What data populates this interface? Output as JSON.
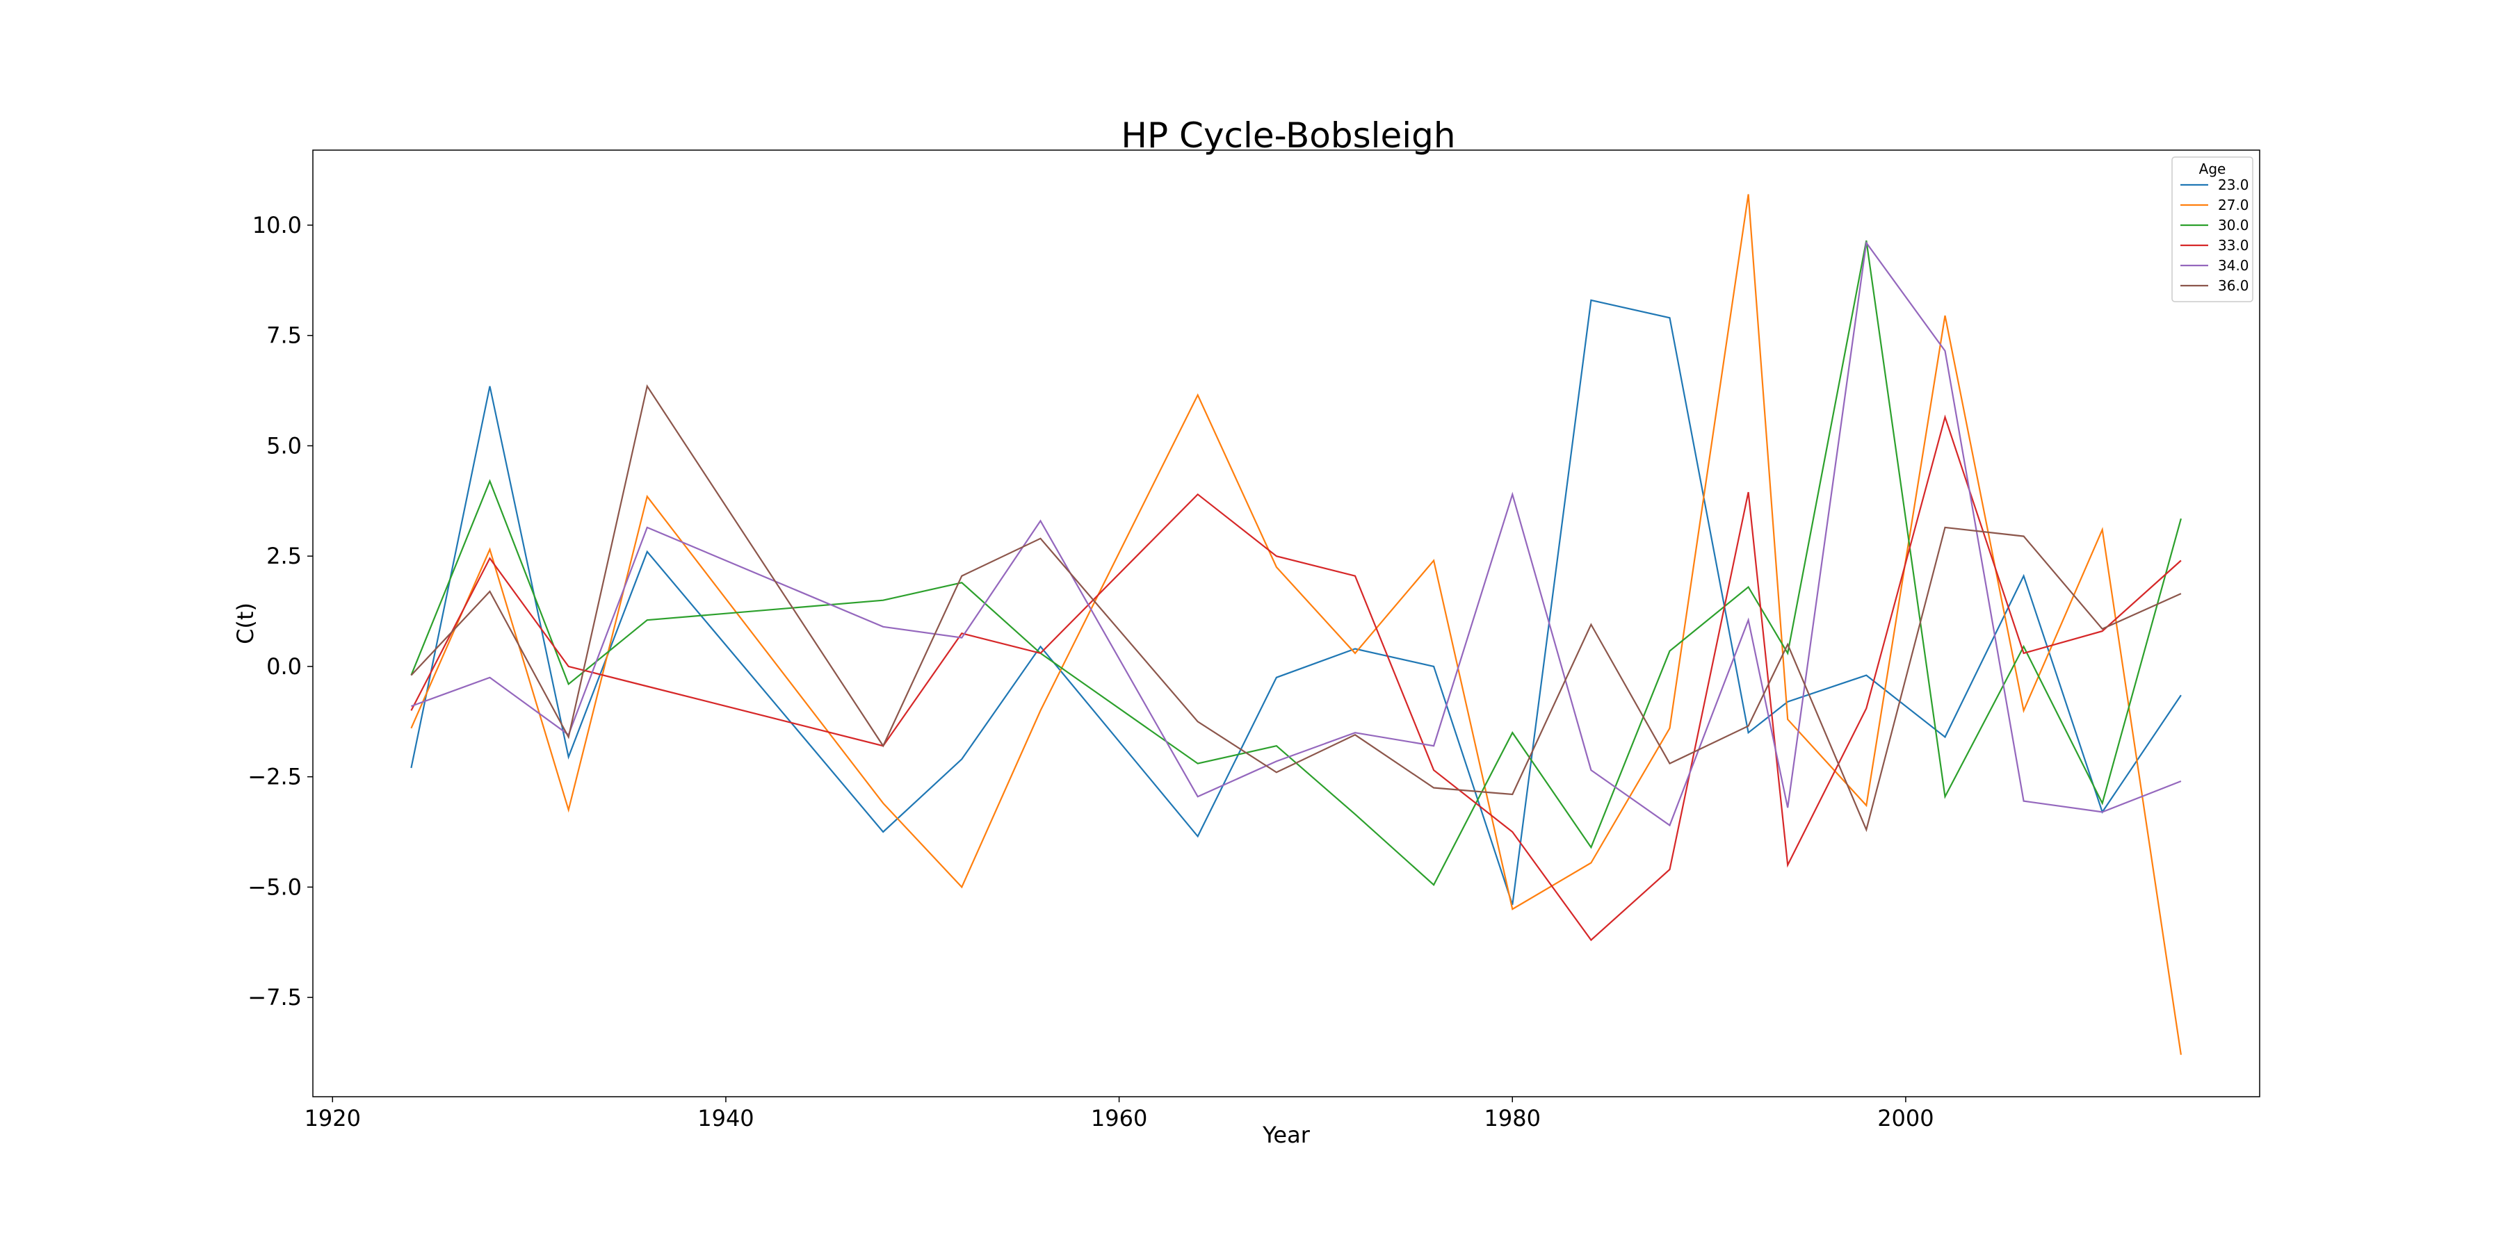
{
  "chart_data": {
    "type": "line",
    "title": "HP Cycle-Bobsleigh",
    "xlabel": "Year",
    "ylabel": "C(t)",
    "xlim": [
      1919,
      2018
    ],
    "ylim": [
      -9.75,
      11.7
    ],
    "xticks": [
      1920,
      1940,
      1960,
      1980,
      2000
    ],
    "yticks": [
      -7.5,
      -5.0,
      -2.5,
      0.0,
      2.5,
      5.0,
      7.5,
      10.0
    ],
    "grid": false,
    "legend": {
      "title": "Age",
      "placement": "top-right"
    },
    "series": [
      {
        "name": "23.0",
        "color": "#1f77b4",
        "points": [
          [
            1924,
            -2.3
          ],
          [
            1928,
            6.35
          ],
          [
            1932,
            -2.05
          ],
          [
            1936,
            2.6
          ],
          [
            1948,
            -3.75
          ],
          [
            1952,
            -2.1
          ],
          [
            1956,
            0.45
          ],
          [
            1964,
            -3.85
          ],
          [
            1968,
            -0.25
          ],
          [
            1972,
            0.4
          ],
          [
            1976,
            0.0
          ],
          [
            1980,
            -5.4
          ],
          [
            1984,
            8.3
          ],
          [
            1988,
            7.9
          ],
          [
            1992,
            -1.5
          ],
          [
            1994,
            -0.8
          ],
          [
            1998,
            -0.2
          ],
          [
            2002,
            -1.6
          ],
          [
            2006,
            2.05
          ],
          [
            2010,
            -3.3
          ],
          [
            2014,
            -0.65
          ]
        ]
      },
      {
        "name": "27.0",
        "color": "#ff7f0e",
        "points": [
          [
            1924,
            -1.4
          ],
          [
            1928,
            2.65
          ],
          [
            1932,
            -3.25
          ],
          [
            1936,
            3.85
          ],
          [
            1948,
            -3.1
          ],
          [
            1952,
            -5.0
          ],
          [
            1956,
            -1.0
          ],
          [
            1964,
            6.15
          ],
          [
            1968,
            2.25
          ],
          [
            1972,
            0.3
          ],
          [
            1976,
            2.4
          ],
          [
            1980,
            -5.5
          ],
          [
            1984,
            -4.45
          ],
          [
            1988,
            -1.4
          ],
          [
            1992,
            10.7
          ],
          [
            1994,
            -1.2
          ],
          [
            1998,
            -3.15
          ],
          [
            2002,
            7.95
          ],
          [
            2006,
            -1.0
          ],
          [
            2010,
            3.1
          ],
          [
            2014,
            -8.8
          ]
        ]
      },
      {
        "name": "30.0",
        "color": "#2ca02c",
        "points": [
          [
            1924,
            -0.2
          ],
          [
            1928,
            4.2
          ],
          [
            1932,
            -0.4
          ],
          [
            1936,
            1.05
          ],
          [
            1948,
            1.5
          ],
          [
            1952,
            1.9
          ],
          [
            1956,
            0.3
          ],
          [
            1964,
            -2.2
          ],
          [
            1968,
            -1.8
          ],
          [
            1972,
            -3.35
          ],
          [
            1976,
            -4.95
          ],
          [
            1980,
            -1.5
          ],
          [
            1984,
            -4.1
          ],
          [
            1988,
            0.35
          ],
          [
            1992,
            1.8
          ],
          [
            1994,
            0.3
          ],
          [
            1998,
            9.65
          ],
          [
            2002,
            -2.95
          ],
          [
            2006,
            0.45
          ],
          [
            2010,
            -3.1
          ],
          [
            2014,
            3.35
          ]
        ]
      },
      {
        "name": "33.0",
        "color": "#d62728",
        "points": [
          [
            1924,
            -1.0
          ],
          [
            1928,
            2.45
          ],
          [
            1932,
            0.0
          ],
          [
            1936,
            -0.45
          ],
          [
            1948,
            -1.8
          ],
          [
            1952,
            0.75
          ],
          [
            1956,
            0.3
          ],
          [
            1964,
            3.9
          ],
          [
            1968,
            2.5
          ],
          [
            1972,
            2.05
          ],
          [
            1976,
            -2.35
          ],
          [
            1980,
            -3.75
          ],
          [
            1984,
            -6.2
          ],
          [
            1988,
            -4.6
          ],
          [
            1992,
            3.95
          ],
          [
            1994,
            -4.5
          ],
          [
            1998,
            -0.95
          ],
          [
            2002,
            5.65
          ],
          [
            2006,
            0.3
          ],
          [
            2010,
            0.8
          ],
          [
            2014,
            2.4
          ]
        ]
      },
      {
        "name": "34.0",
        "color": "#9467bd",
        "points": [
          [
            1924,
            -0.9
          ],
          [
            1928,
            -0.25
          ],
          [
            1932,
            -1.55
          ],
          [
            1936,
            3.15
          ],
          [
            1948,
            0.9
          ],
          [
            1952,
            0.65
          ],
          [
            1956,
            3.3
          ],
          [
            1964,
            -2.95
          ],
          [
            1968,
            -2.15
          ],
          [
            1972,
            -1.5
          ],
          [
            1976,
            -1.8
          ],
          [
            1980,
            3.9
          ],
          [
            1984,
            -2.35
          ],
          [
            1988,
            -3.6
          ],
          [
            1992,
            1.05
          ],
          [
            1994,
            -3.2
          ],
          [
            1998,
            9.6
          ],
          [
            2002,
            7.15
          ],
          [
            2006,
            -3.05
          ],
          [
            2010,
            -3.3
          ],
          [
            2014,
            -2.6
          ]
        ]
      },
      {
        "name": "36.0",
        "color": "#8c564b",
        "points": [
          [
            1924,
            -0.2
          ],
          [
            1928,
            1.7
          ],
          [
            1932,
            -1.6
          ],
          [
            1936,
            6.35
          ],
          [
            1948,
            -1.8
          ],
          [
            1952,
            2.05
          ],
          [
            1956,
            2.9
          ],
          [
            1964,
            -1.25
          ],
          [
            1968,
            -2.4
          ],
          [
            1972,
            -1.55
          ],
          [
            1976,
            -2.75
          ],
          [
            1980,
            -2.9
          ],
          [
            1984,
            0.95
          ],
          [
            1988,
            -2.2
          ],
          [
            1992,
            -1.35
          ],
          [
            1994,
            0.5
          ],
          [
            1998,
            -3.7
          ],
          [
            2002,
            3.15
          ],
          [
            2006,
            2.95
          ],
          [
            2010,
            0.85
          ],
          [
            2014,
            1.65
          ]
        ]
      }
    ]
  }
}
